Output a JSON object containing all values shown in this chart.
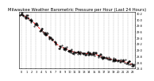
{
  "title": "Milwaukee Weather Barometric Pressure per Hour (Last 24 Hours)",
  "hours": [
    0,
    1,
    2,
    3,
    4,
    5,
    6,
    7,
    8,
    9,
    10,
    11,
    12,
    13,
    14,
    15,
    16,
    17,
    18,
    19,
    20,
    21,
    22,
    23
  ],
  "pressure": [
    30.15,
    30.08,
    29.96,
    29.82,
    29.65,
    29.52,
    29.38,
    29.22,
    29.1,
    29.05,
    28.98,
    28.92,
    28.9,
    28.88,
    28.88,
    28.86,
    28.82,
    28.75,
    28.72,
    28.68,
    28.65,
    28.62,
    28.58,
    28.52
  ],
  "ylim_min": 28.4,
  "ylim_max": 30.25,
  "line_color": "#ff0000",
  "marker_color": "#000000",
  "bg_color": "#ffffff",
  "grid_color": "#aaaaaa",
  "title_fontsize": 3.8,
  "tick_fontsize": 2.5,
  "ytick_fontsize": 2.5,
  "yticks": [
    28.4,
    28.6,
    28.8,
    29.0,
    29.2,
    29.4,
    29.6,
    29.8,
    30.0,
    30.2
  ]
}
